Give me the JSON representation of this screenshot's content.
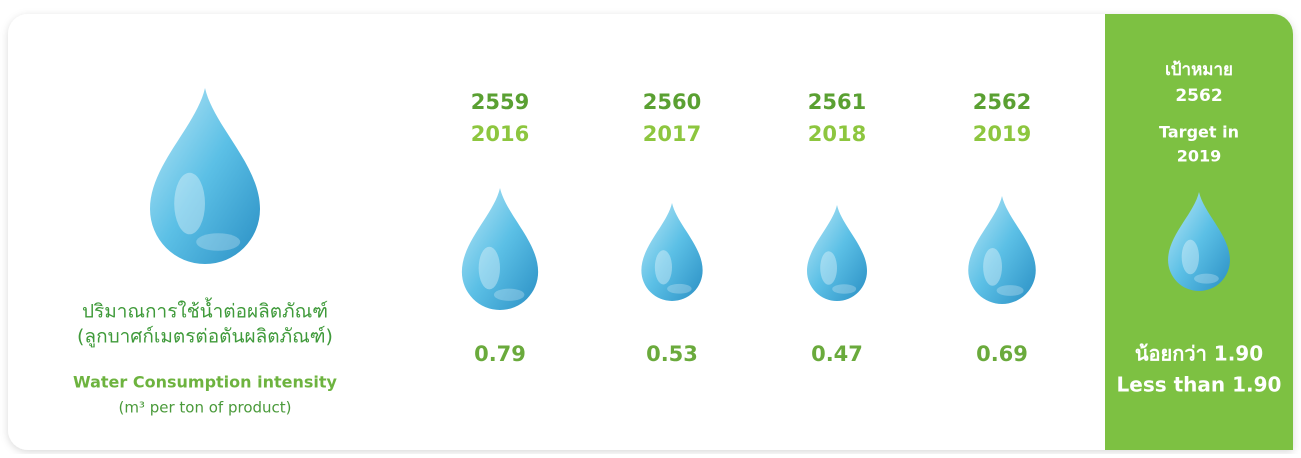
{
  "description": {
    "thai_line1": "ปริมาณการใช้น้ำต่อผลิตภัณฑ์",
    "thai_line2": "(ลูกบาศก์เมตรต่อตันผลิตภัณฑ์)",
    "english_line1": "Water Consumption intensity",
    "english_line2": "(m³ per ton of product)"
  },
  "columns": [
    {
      "year_thai": "2559",
      "year": "2016",
      "value": 0.79
    },
    {
      "year_thai": "2560",
      "year": "2017",
      "value": 0.53
    },
    {
      "year_thai": "2561",
      "year": "2018",
      "value": 0.47
    },
    {
      "year_thai": "2562",
      "year": "2019",
      "value": 0.69
    }
  ],
  "target": {
    "label_thai": "เป้าหมาย",
    "year_thai": "2562",
    "label": "Target in",
    "year": "2019",
    "value_thai": "น้อยกว่า 1.90",
    "value": "Less than 1.90"
  }
}
